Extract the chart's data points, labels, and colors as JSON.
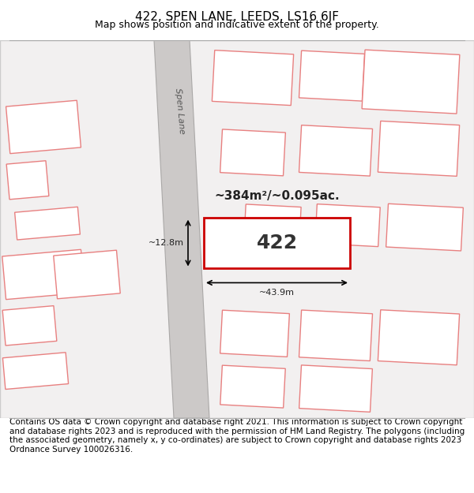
{
  "title_line1": "422, SPEN LANE, LEEDS, LS16 6JF",
  "title_line2": "Map shows position and indicative extent of the property.",
  "footer_text": "Contains OS data © Crown copyright and database right 2021. This information is subject to Crown copyright and database rights 2023 and is reproduced with the permission of HM Land Registry. The polygons (including the associated geometry, namely x, y co-ordinates) are subject to Crown copyright and database rights 2023 Ordnance Survey 100026316.",
  "map_bg": "#f0eeee",
  "road_color": "#cccccc",
  "road_edge_color": "#aaaaaa",
  "building_fill": "#ffffff",
  "building_edge": "#e88080",
  "highlight_fill": "#ffffff",
  "highlight_edge": "#cc0000",
  "highlight_lw": 2.0,
  "road_label": "Spen Lane",
  "plot_label": "422",
  "area_label": "~384m²/~0.095ac.",
  "dim_width": "~43.9m",
  "dim_height": "~12.8m",
  "title_fontsize": 11,
  "subtitle_fontsize": 9,
  "footer_fontsize": 7.5
}
